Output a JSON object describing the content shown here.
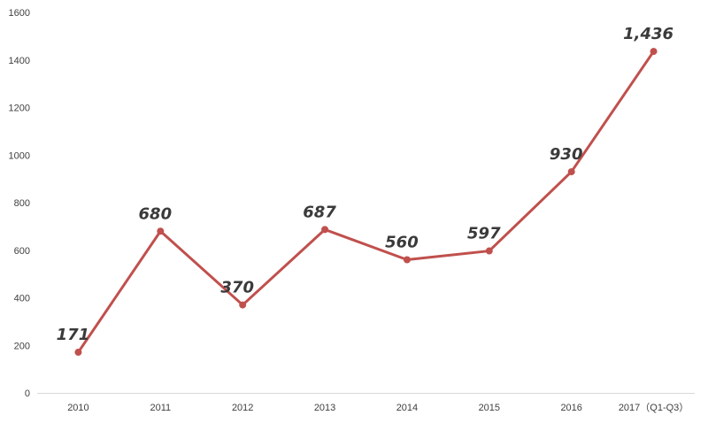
{
  "chart_data": {
    "type": "line",
    "title": "",
    "xlabel": "",
    "ylabel": "",
    "categories": [
      "2010",
      "2011",
      "2012",
      "2013",
      "2014",
      "2015",
      "2016",
      "2017（Q1-Q3）"
    ],
    "series": [
      {
        "values": [
          171,
          680,
          370,
          687,
          560,
          597,
          930,
          1436
        ],
        "data_labels": [
          "171",
          "680",
          "370",
          "687",
          "560",
          "597",
          "930",
          "1,436"
        ],
        "color": "#C0504D"
      }
    ],
    "ylim": [
      0,
      1600
    ],
    "yticks": [
      0,
      200,
      400,
      600,
      800,
      1000,
      1200,
      1400,
      1600
    ],
    "grid": false,
    "legend": "none",
    "axis_color": "#D9D9D9",
    "text_color": "#404040"
  }
}
